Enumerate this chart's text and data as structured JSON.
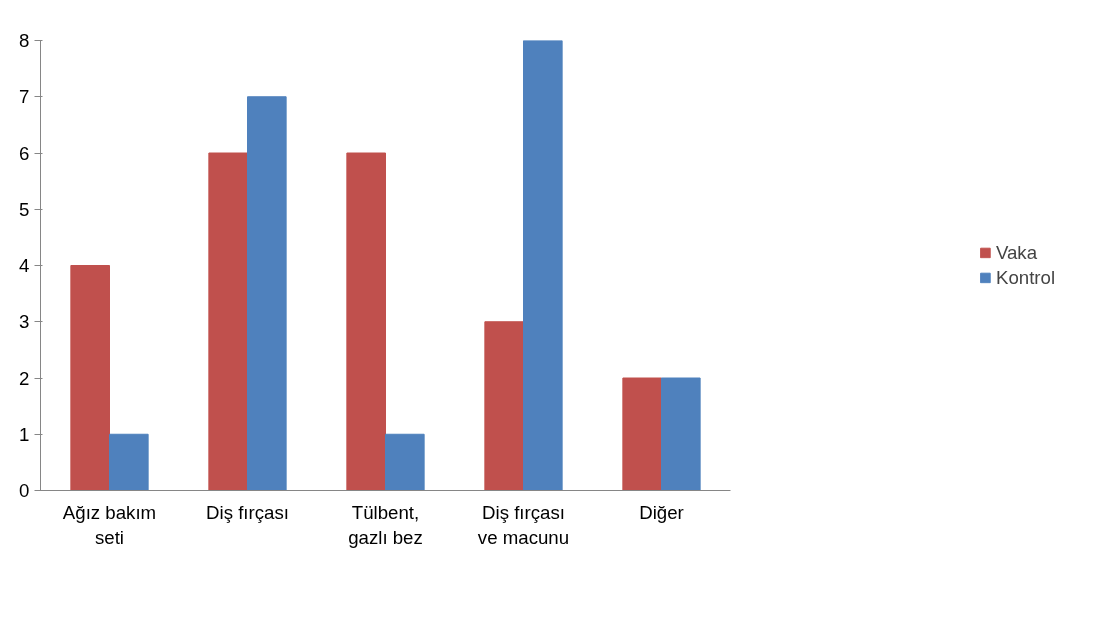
{
  "chart_data": {
    "type": "bar",
    "categories": [
      "Ağız bakım\nseti",
      "Diş fırçası",
      "Tülbent,\ngazlı bez",
      "Diş fırçası\nve macunu",
      "Diğer"
    ],
    "series": [
      {
        "name": "Vaka",
        "color": "#c0504d",
        "values": [
          4,
          6,
          6,
          3,
          2
        ]
      },
      {
        "name": "Kontrol",
        "color": "#4f81bd",
        "values": [
          1,
          7,
          1,
          8,
          2
        ]
      }
    ],
    "ylim": [
      0,
      8
    ],
    "yticks": [
      0,
      1,
      2,
      3,
      4,
      5,
      6,
      7,
      8
    ],
    "grid": false,
    "legend": "right"
  }
}
